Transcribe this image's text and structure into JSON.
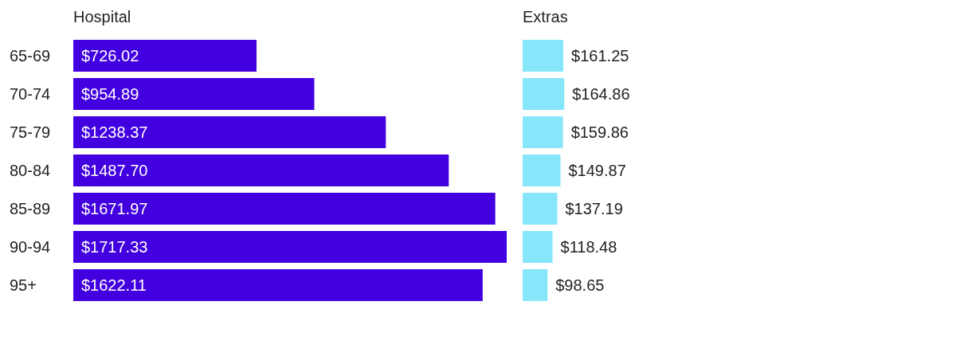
{
  "chart_data": [
    {
      "type": "bar",
      "orientation": "horizontal",
      "title": "Hospital",
      "categories": [
        "65-69",
        "70-74",
        "75-79",
        "80-84",
        "85-89",
        "90-94",
        "95+"
      ],
      "values": [
        726.02,
        954.89,
        1238.37,
        1487.7,
        1671.97,
        1717.33,
        1622.11
      ],
      "value_labels": [
        "$726.02",
        "$954.89",
        "$1238.37",
        "$1487.70",
        "$1671.97",
        "$1717.33",
        "$1622.11"
      ],
      "color": "#4200e0"
    },
    {
      "type": "bar",
      "orientation": "horizontal",
      "title": "Extras",
      "categories": [
        null,
        null,
        null,
        null,
        null,
        null,
        null
      ],
      "values": [
        161.25,
        164.86,
        159.86,
        149.87,
        137.19,
        118.48,
        98.65
      ],
      "value_labels": [
        "$161.25",
        "$164.86",
        "$159.86",
        "$149.87",
        "$137.19",
        "$118.48",
        "$98.65"
      ],
      "color": "#88e6fb"
    }
  ]
}
